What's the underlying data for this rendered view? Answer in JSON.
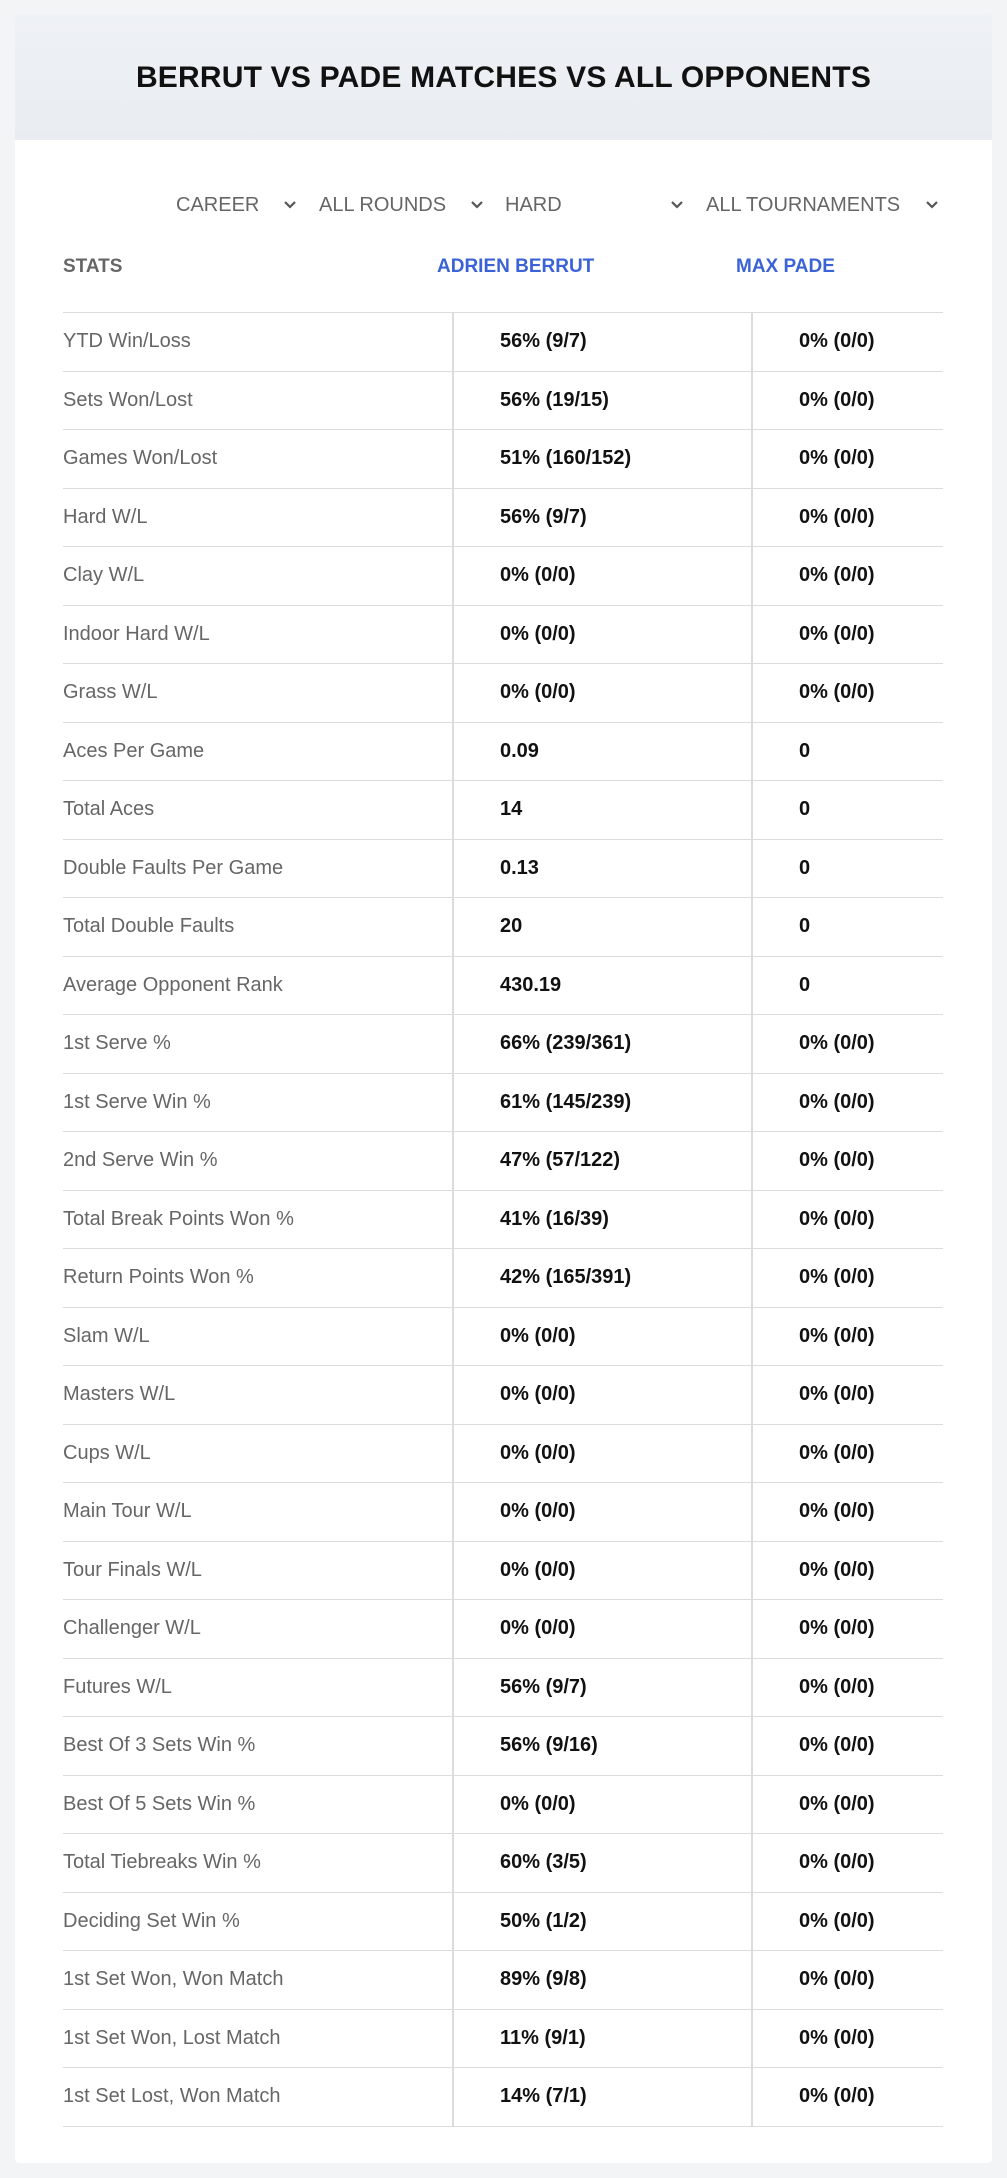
{
  "header": {
    "title": "BERRUT VS PADE MATCHES VS ALL OPPONENTS"
  },
  "filters": [
    "CAREER",
    "ALL ROUNDS",
    "HARD",
    "ALL TOURNAMENTS"
  ],
  "table": {
    "columns": [
      "STATS",
      "ADRIEN BERRUT",
      "MAX PADE"
    ],
    "rows": [
      [
        "YTD Win/Loss",
        "56% (9/7)",
        "0% (0/0)"
      ],
      [
        "Sets Won/Lost",
        "56% (19/15)",
        "0% (0/0)"
      ],
      [
        "Games Won/Lost",
        "51% (160/152)",
        "0% (0/0)"
      ],
      [
        "Hard W/L",
        "56% (9/7)",
        "0% (0/0)"
      ],
      [
        "Clay W/L",
        "0% (0/0)",
        "0% (0/0)"
      ],
      [
        "Indoor Hard W/L",
        "0% (0/0)",
        "0% (0/0)"
      ],
      [
        "Grass W/L",
        "0% (0/0)",
        "0% (0/0)"
      ],
      [
        "Aces Per Game",
        "0.09",
        "0"
      ],
      [
        "Total Aces",
        "14",
        "0"
      ],
      [
        "Double Faults Per Game",
        "0.13",
        "0"
      ],
      [
        "Total Double Faults",
        "20",
        "0"
      ],
      [
        "Average Opponent Rank",
        "430.19",
        "0"
      ],
      [
        "1st Serve %",
        "66% (239/361)",
        "0% (0/0)"
      ],
      [
        "1st Serve Win %",
        "61% (145/239)",
        "0% (0/0)"
      ],
      [
        "2nd Serve Win %",
        "47% (57/122)",
        "0% (0/0)"
      ],
      [
        "Total Break Points Won %",
        "41% (16/39)",
        "0% (0/0)"
      ],
      [
        "Return Points Won %",
        "42% (165/391)",
        "0% (0/0)"
      ],
      [
        "Slam W/L",
        "0% (0/0)",
        "0% (0/0)"
      ],
      [
        "Masters W/L",
        "0% (0/0)",
        "0% (0/0)"
      ],
      [
        "Cups W/L",
        "0% (0/0)",
        "0% (0/0)"
      ],
      [
        "Main Tour W/L",
        "0% (0/0)",
        "0% (0/0)"
      ],
      [
        "Tour Finals W/L",
        "0% (0/0)",
        "0% (0/0)"
      ],
      [
        "Challenger W/L",
        "0% (0/0)",
        "0% (0/0)"
      ],
      [
        "Futures W/L",
        "56% (9/7)",
        "0% (0/0)"
      ],
      [
        "Best Of 3 Sets Win %",
        "56% (9/16)",
        "0% (0/0)"
      ],
      [
        "Best Of 5 Sets Win %",
        "0% (0/0)",
        "0% (0/0)"
      ],
      [
        "Total Tiebreaks Win %",
        "60% (3/5)",
        "0% (0/0)"
      ],
      [
        "Deciding Set Win %",
        "50% (1/2)",
        "0% (0/0)"
      ],
      [
        "1st Set Won, Won Match",
        "89% (9/8)",
        "0% (0/0)"
      ],
      [
        "1st Set Won, Lost Match",
        "11% (9/1)",
        "0% (0/0)"
      ],
      [
        "1st Set Lost, Won Match",
        "14% (7/1)",
        "0% (0/0)"
      ]
    ]
  }
}
